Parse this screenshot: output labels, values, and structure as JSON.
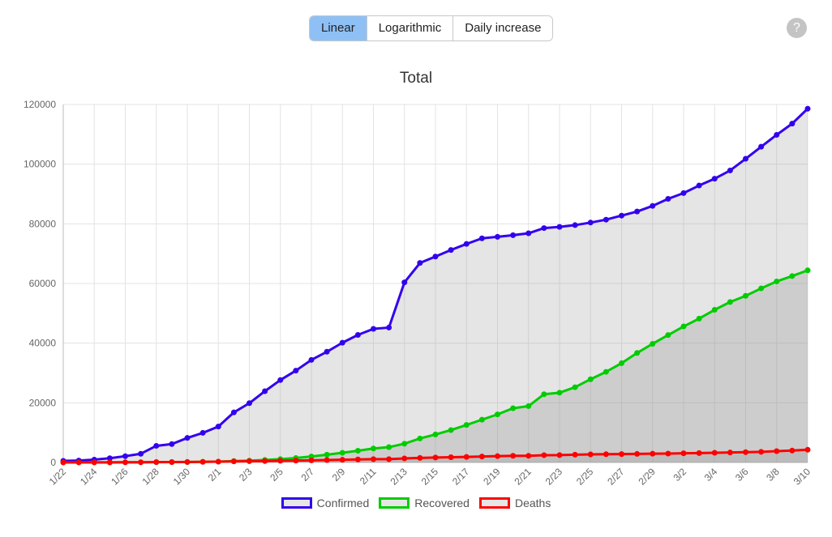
{
  "tabs": [
    {
      "label": "Linear",
      "active": true
    },
    {
      "label": "Logarithmic",
      "active": false
    },
    {
      "label": "Daily increase",
      "active": false
    }
  ],
  "help": {
    "label": "?"
  },
  "chart_data": {
    "type": "line",
    "title": "Total",
    "xlabel": "",
    "ylabel": "",
    "ylim": [
      0,
      120000
    ],
    "yticks": [
      0,
      20000,
      40000,
      60000,
      80000,
      100000,
      120000
    ],
    "grid": true,
    "legend_position": "bottom",
    "x": [
      "1/22",
      "1/23",
      "1/24",
      "1/25",
      "1/26",
      "1/27",
      "1/28",
      "1/29",
      "1/30",
      "1/31",
      "2/1",
      "2/2",
      "2/3",
      "2/4",
      "2/5",
      "2/6",
      "2/7",
      "2/8",
      "2/9",
      "2/10",
      "2/11",
      "2/12",
      "2/13",
      "2/14",
      "2/15",
      "2/16",
      "2/17",
      "2/18",
      "2/19",
      "2/20",
      "2/21",
      "2/22",
      "2/23",
      "2/24",
      "2/25",
      "2/26",
      "2/27",
      "2/28",
      "2/29",
      "3/1",
      "3/2",
      "3/3",
      "3/4",
      "3/5",
      "3/6",
      "3/7",
      "3/8",
      "3/9",
      "3/10"
    ],
    "xtick_labels": [
      "1/22",
      "1/24",
      "1/26",
      "1/28",
      "1/30",
      "2/1",
      "2/3",
      "2/5",
      "2/7",
      "2/9",
      "2/11",
      "2/13",
      "2/15",
      "2/17",
      "2/19",
      "2/21",
      "2/23",
      "2/25",
      "2/27",
      "2/29",
      "3/2",
      "3/4",
      "3/6",
      "3/8",
      "3/10"
    ],
    "series": [
      {
        "name": "Confirmed",
        "color": "#3300ee",
        "values": [
          555,
          654,
          941,
          1434,
          2118,
          2927,
          5578,
          6166,
          8234,
          9927,
          12038,
          16787,
          19881,
          23892,
          27635,
          30794,
          34391,
          37120,
          40150,
          42762,
          44802,
          45221,
          60368,
          66885,
          69030,
          71224,
          73258,
          75136,
          75639,
          76197,
          76823,
          78579,
          78965,
          79568,
          80413,
          81395,
          82754,
          84120,
          86011,
          88369,
          90306,
          92840,
          95120,
          97886,
          101801,
          105847,
          109821,
          113590,
          118582
        ]
      },
      {
        "name": "Recovered",
        "color": "#00cc00",
        "values": [
          28,
          30,
          36,
          39,
          52,
          61,
          107,
          126,
          143,
          222,
          284,
          472,
          623,
          852,
          1124,
          1487,
          2011,
          2616,
          3244,
          3946,
          4683,
          5150,
          6295,
          8058,
          9395,
          10865,
          12583,
          14352,
          16121,
          18177,
          18890,
          22886,
          23394,
          25227,
          27905,
          30384,
          33277,
          36711,
          39782,
          42716,
          45602,
          48228,
          51170,
          53796,
          55865,
          58358,
          60694,
          62494,
          64404
        ]
      },
      {
        "name": "Deaths",
        "color": "#ff0000",
        "values": [
          17,
          18,
          26,
          42,
          56,
          82,
          131,
          133,
          171,
          213,
          259,
          362,
          426,
          492,
          564,
          634,
          719,
          806,
          906,
          1013,
          1113,
          1118,
          1371,
          1523,
          1666,
          1770,
          1868,
          2007,
          2122,
          2247,
          2251,
          2458,
          2469,
          2629,
          2708,
          2770,
          2814,
          2872,
          2941,
          2996,
          3085,
          3160,
          3254,
          3348,
          3460,
          3558,
          3802,
          3988,
          4262
        ]
      }
    ]
  }
}
